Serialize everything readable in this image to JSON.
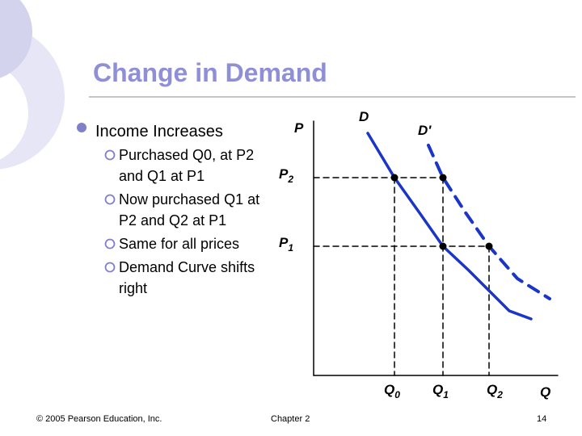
{
  "title": "Change in Demand",
  "bullets": [
    {
      "text": "Income Increases",
      "subs": [
        "Purchased Q0, at P2 and  Q1 at P1",
        "Now purchased Q1 at P2 and Q2 at P1",
        "Same for all prices",
        "Demand Curve shifts right"
      ]
    }
  ],
  "diagram": {
    "y_axis": "P",
    "x_axis": "Q",
    "curve_d": "D",
    "curve_d2": "D'",
    "price_labels": [
      {
        "main": "P",
        "sub": "2"
      },
      {
        "main": "P",
        "sub": "1"
      }
    ],
    "quantity_labels": [
      {
        "main": "Q",
        "sub": "0"
      },
      {
        "main": "Q",
        "sub": "1"
      },
      {
        "main": "Q",
        "sub": "2"
      }
    ]
  },
  "footer": {
    "copyright": "© 2005 Pearson Education, Inc.",
    "chapter": "Chapter 2",
    "page": "14"
  }
}
